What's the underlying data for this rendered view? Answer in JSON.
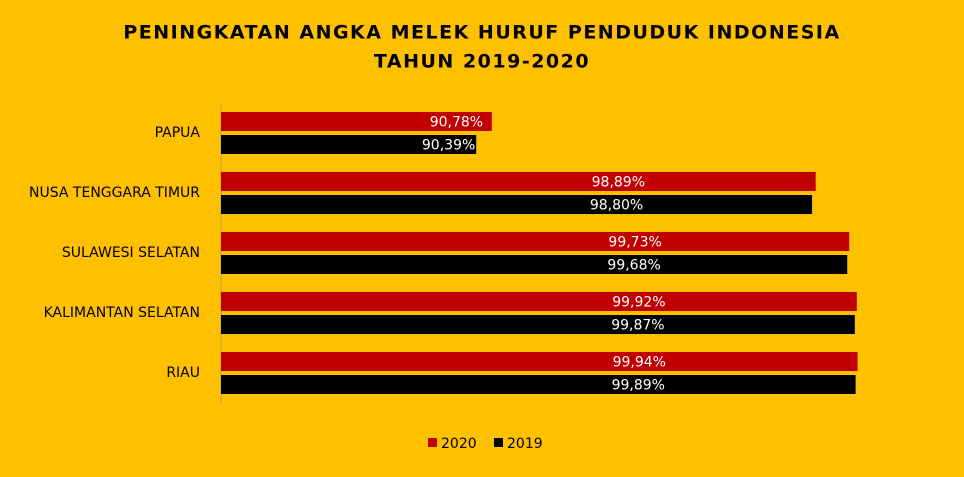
{
  "chart_data": {
    "type": "bar",
    "orientation": "horizontal",
    "title": [
      "PENINGKATAN ANGKA MELEK HURUF PENDUDUK INDONESIA",
      "TAHUN 2019-2020"
    ],
    "categories": [
      "PAPUA",
      "NUSA TENGGARA TIMUR",
      "SULAWESI SELATAN",
      "KALIMANTAN SELATAN",
      "RIAU"
    ],
    "series": [
      {
        "name": "2020",
        "color": "#c00000",
        "values": [
          90.78,
          98.89,
          99.73,
          99.92,
          99.94
        ],
        "value_labels": [
          "90,78%",
          "98,89%",
          "99,73%",
          "99,92%",
          "99,94%"
        ]
      },
      {
        "name": "2019",
        "color": "#000000",
        "values": [
          90.39,
          98.8,
          99.68,
          99.87,
          99.89
        ],
        "value_labels": [
          "90,39%",
          "98,80%",
          "99,68%",
          "99,87%",
          "99,89%"
        ]
      }
    ],
    "xlim": [
      84,
      100
    ],
    "legend": "bottom"
  }
}
